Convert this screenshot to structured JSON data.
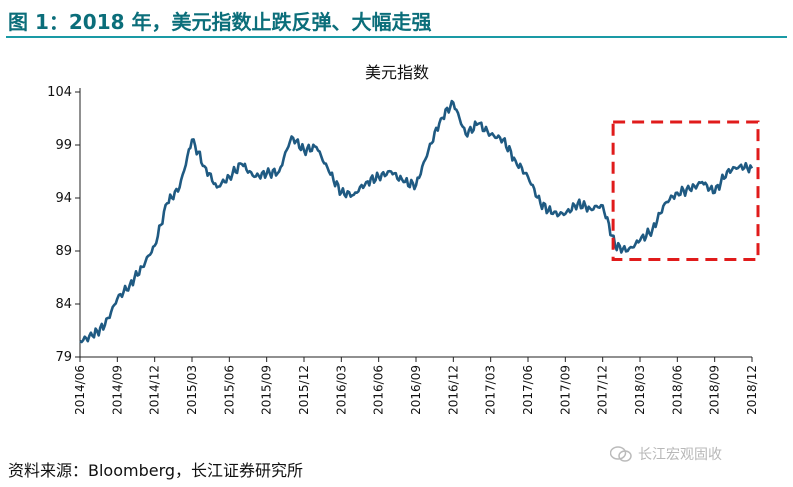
{
  "figure_title": "图 1：2018 年，美元指数止跌反弹、大幅走强",
  "source_note": "资料来源：Bloomberg，长江证券研究所",
  "watermark": {
    "text": "长江宏观固收",
    "icon": "wechat-icon"
  },
  "colors": {
    "title_teal": "#0b6e7a",
    "line": "#1f5a82",
    "highlight": "#e01b1b",
    "rule": "#1a9aa5"
  },
  "chart_data": {
    "type": "line",
    "title": "美元指数",
    "xlabel": "",
    "ylabel": "",
    "ylim": [
      79,
      104
    ],
    "yticks": [
      79,
      84,
      89,
      94,
      99,
      104
    ],
    "xticks": [
      "2014/06",
      "2014/09",
      "2014/12",
      "2015/03",
      "2015/06",
      "2015/09",
      "2015/12",
      "2016/03",
      "2016/06",
      "2016/09",
      "2016/12",
      "2017/03",
      "2017/06",
      "2017/09",
      "2017/12",
      "2018/03",
      "2018/06",
      "2018/09",
      "2018/12"
    ],
    "grid": false,
    "legend": "none",
    "series": [
      {
        "name": "",
        "x": [
          "2014/06",
          "2014/07",
          "2014/08",
          "2014/09",
          "2014/10",
          "2014/11",
          "2014/12",
          "2015/01",
          "2015/02",
          "2015/03",
          "2015/04",
          "2015/05",
          "2015/06",
          "2015/07",
          "2015/08",
          "2015/09",
          "2015/10",
          "2015/11",
          "2015/12",
          "2016/01",
          "2016/02",
          "2016/03",
          "2016/04",
          "2016/05",
          "2016/06",
          "2016/07",
          "2016/08",
          "2016/09",
          "2016/10",
          "2016/11",
          "2016/12",
          "2017/01",
          "2017/02",
          "2017/03",
          "2017/04",
          "2017/05",
          "2017/06",
          "2017/07",
          "2017/08",
          "2017/09",
          "2017/10",
          "2017/11",
          "2017/12",
          "2018/01",
          "2018/02",
          "2018/03",
          "2018/04",
          "2018/05",
          "2018/06",
          "2018/07",
          "2018/08",
          "2018/09",
          "2018/10",
          "2018/11",
          "2018/12"
        ],
        "values": [
          80.5,
          81.0,
          82.0,
          84.5,
          85.8,
          87.5,
          89.5,
          93.5,
          95.0,
          99.5,
          97.0,
          95.0,
          96.0,
          97.2,
          96.0,
          96.3,
          96.5,
          99.8,
          98.5,
          98.8,
          96.5,
          94.5,
          94.3,
          95.5,
          96.0,
          96.5,
          95.5,
          95.2,
          98.5,
          101.5,
          103.0,
          100.0,
          101.0,
          100.0,
          99.5,
          97.5,
          96.0,
          93.5,
          92.5,
          92.5,
          93.5,
          93.0,
          93.3,
          89.5,
          89.0,
          90.0,
          91.0,
          93.5,
          94.5,
          94.8,
          95.5,
          94.5,
          96.5,
          97.0,
          96.8
        ]
      }
    ],
    "highlight_range": [
      "2018/01",
      "2018/12"
    ]
  }
}
